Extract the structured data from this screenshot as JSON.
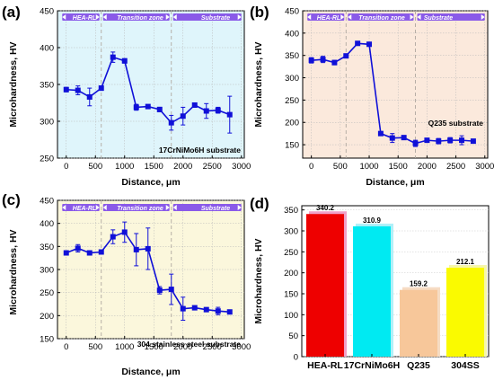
{
  "colors": {
    "line": "#1010d8",
    "zone_bar": "#8a5ae8",
    "grid": "#b8b8b8",
    "divider": "#b0a8a0"
  },
  "panels": [
    {
      "letter": "(a)",
      "background": "#dff5fb",
      "note": "17CrNiMo6H substrate",
      "zones": [
        "HEA-RL",
        "Transition zone",
        "Substrate"
      ]
    },
    {
      "letter": "(b)",
      "background": "#fbe9dc",
      "note": "Q235 substrate",
      "zones": [
        "HEA-RL",
        "Transition zone",
        "Substrate"
      ]
    },
    {
      "letter": "(c)",
      "background": "#fbf7dc",
      "note": "304 stainless steel substrate",
      "zones": [
        "HEA-RL",
        "Transition zone",
        "Substrate"
      ]
    },
    {
      "letter": "(d)",
      "background": "#ffffff",
      "note": "",
      "zones": []
    }
  ],
  "chart_data": [
    {
      "type": "line",
      "xlabel": "Distance, μm",
      "ylabel": "Microhardness, HV",
      "xlim": [
        -150,
        3050
      ],
      "ylim": [
        250,
        450
      ],
      "xticks": [
        0,
        500,
        1000,
        1500,
        2000,
        2500,
        3000
      ],
      "yticks": [
        250,
        300,
        350,
        400,
        450
      ],
      "zone_boundaries": [
        600,
        1800
      ],
      "grid": true,
      "series": [
        {
          "x": [
            0,
            200,
            400,
            600,
            800,
            1000,
            1200,
            1400,
            1600,
            1800,
            2000,
            2200,
            2400,
            2600,
            2800
          ],
          "y": [
            343,
            342,
            333,
            345,
            387,
            382,
            319,
            320,
            316,
            298,
            307,
            322,
            314,
            315,
            309
          ],
          "err": [
            3,
            6,
            12,
            3,
            7,
            3,
            4,
            2,
            3,
            10,
            12,
            3,
            10,
            4,
            25
          ]
        }
      ]
    },
    {
      "type": "line",
      "xlabel": "Distance, μm",
      "ylabel": "Microhardness, HV",
      "xlim": [
        -150,
        3050
      ],
      "ylim": [
        120,
        450
      ],
      "xticks": [
        0,
        500,
        1000,
        1500,
        2000,
        2500,
        3000
      ],
      "yticks": [
        150,
        200,
        250,
        300,
        350,
        400,
        450
      ],
      "zone_boundaries": [
        600,
        1800
      ],
      "grid": true,
      "series": [
        {
          "x": [
            0,
            200,
            400,
            600,
            800,
            1000,
            1200,
            1400,
            1600,
            1800,
            2000,
            2200,
            2400,
            2600,
            2800
          ],
          "y": [
            339,
            341,
            334,
            349,
            377,
            375,
            175,
            165,
            166,
            153,
            160,
            158,
            160,
            160,
            158
          ],
          "err": [
            6,
            7,
            5,
            3,
            2,
            2,
            3,
            10,
            3,
            7,
            4,
            6,
            6,
            10,
            4
          ]
        }
      ]
    },
    {
      "type": "line",
      "xlabel": "Distance, μm",
      "ylabel": "Microhardness, HV",
      "xlim": [
        -150,
        3050
      ],
      "ylim": [
        150,
        450
      ],
      "xticks": [
        0,
        500,
        1000,
        1500,
        2000,
        2500,
        3000
      ],
      "yticks": [
        150,
        200,
        250,
        300,
        350,
        400,
        450
      ],
      "zone_boundaries": [
        600,
        1800
      ],
      "grid": true,
      "series": [
        {
          "x": [
            0,
            200,
            400,
            600,
            800,
            1000,
            1200,
            1400,
            1600,
            1800,
            2000,
            2200,
            2400,
            2600,
            2800
          ],
          "y": [
            336,
            346,
            336,
            338,
            371,
            381,
            343,
            345,
            255,
            257,
            215,
            217,
            213,
            210,
            208
          ],
          "err": [
            4,
            8,
            4,
            3,
            15,
            22,
            35,
            45,
            8,
            33,
            25,
            3,
            4,
            8,
            4
          ]
        }
      ]
    },
    {
      "type": "bar",
      "xlabel": "",
      "ylabel": "Microhardness, HV",
      "ylim": [
        0,
        360
      ],
      "yticks": [
        0,
        50,
        100,
        150,
        200,
        250,
        300,
        350
      ],
      "categories": [
        "HEA-RL",
        "17CrNiMo6H",
        "Q235",
        "304SS"
      ],
      "values": [
        340.2,
        310.9,
        159.2,
        212.1
      ],
      "value_labels": [
        "340.2",
        "310.9",
        "159.2",
        "212.1"
      ],
      "bar_colors": [
        "#ee0000",
        "#00eaf2",
        "#f7c79a",
        "#fafa00"
      ],
      "shadow_colors": [
        "#f0a0c8",
        "#b0f0f8",
        "#f6dcc4",
        "#f6f6a8"
      ],
      "grid": true
    }
  ]
}
